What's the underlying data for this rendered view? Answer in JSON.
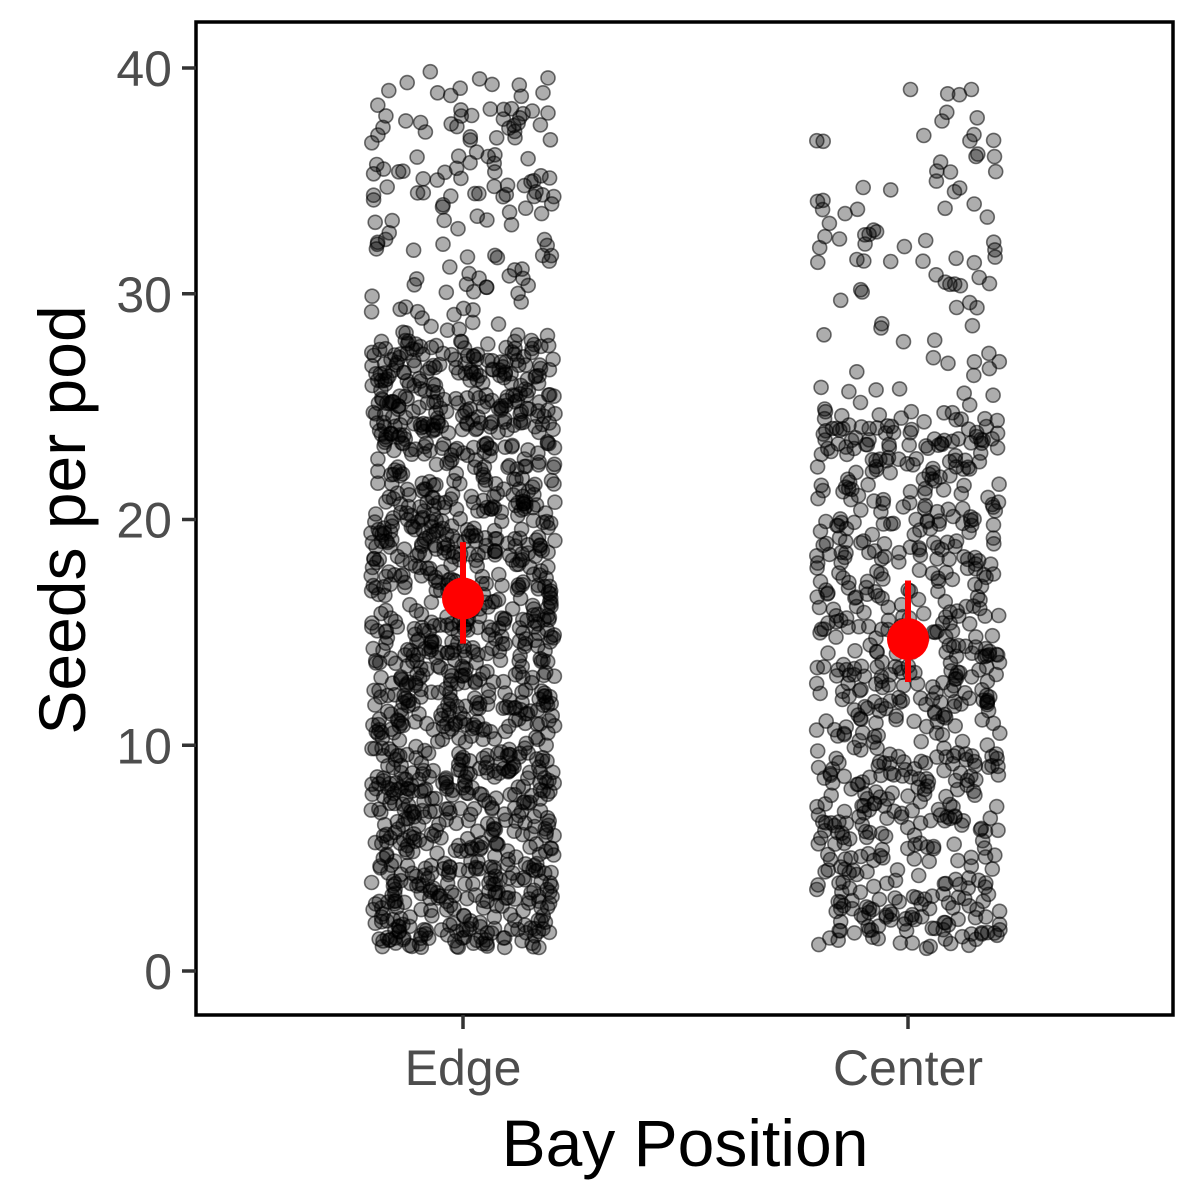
{
  "chart_data": {
    "type": "scatter",
    "subtype": "jittered strip plot with mean and error bar",
    "xlabel": "Bay Position",
    "ylabel": "Seeds per pod",
    "categories": [
      "Edge",
      "Center"
    ],
    "y_ticks": [
      0,
      10,
      20,
      30,
      40
    ],
    "ylim": [
      -2,
      42
    ],
    "grid": false,
    "legend": "none",
    "points": [
      {
        "category": "Edge",
        "approx_count": 1500,
        "y_range": [
          1,
          40
        ],
        "density": "dense from 1 to 28, sparse above 28"
      },
      {
        "category": "Center",
        "approx_count": 800,
        "y_range": [
          1,
          39.5
        ],
        "density": "dense from 1 to 25, sparse above 25"
      }
    ],
    "summary": [
      {
        "category": "Edge",
        "mean": 16.5,
        "lower": 14.5,
        "upper": 19
      },
      {
        "category": "Center",
        "mean": 14.7,
        "lower": 12.8,
        "upper": 17.3
      }
    ],
    "colors": {
      "points": "#000000",
      "summary": "#ff0000",
      "axis_text": "#4d4d4d",
      "title_text": "#000000"
    }
  }
}
